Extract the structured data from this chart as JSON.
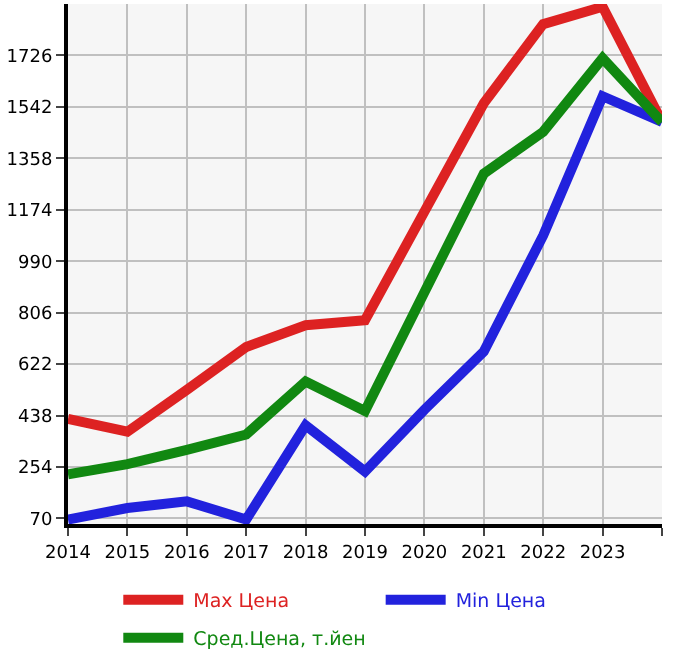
{
  "chart_data": {
    "type": "line",
    "x": [
      2014,
      2015,
      2016,
      2017,
      2018,
      2019,
      2020,
      2021,
      2022,
      2023,
      2024
    ],
    "series": [
      {
        "name": "Max Цена",
        "color": "#dd2222",
        "values": [
          426,
          380,
          530,
          683,
          761,
          779,
          1167,
          1555,
          1838,
          1900,
          1488
        ]
      },
      {
        "name": "Min Цена",
        "color": "#2222dd",
        "values": [
          66,
          107,
          131,
          66,
          403,
          238,
          459,
          667,
          1082,
          1580,
          1488
        ]
      },
      {
        "name": "Сред.Цена, т.йен",
        "color": "#118811",
        "values": [
          228,
          264,
          315,
          370,
          560,
          454,
          879,
          1303,
          1453,
          1716,
          1488
        ]
      }
    ],
    "xlim": [
      2014,
      2024
    ],
    "xticks": [
      2014,
      2015,
      2016,
      2017,
      2018,
      2019,
      2020,
      2021,
      2022,
      2023,
      {
        "value": 2024,
        "label": null
      }
    ],
    "ylim": [
      50,
      1910
    ],
    "yticks": [
      70,
      254,
      438,
      622,
      806,
      990,
      1174,
      1358,
      1542,
      1726
    ],
    "grid": true,
    "legend": "bottom",
    "marker": "none",
    "line_style": "solid"
  }
}
